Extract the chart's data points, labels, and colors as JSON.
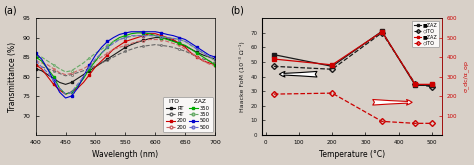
{
  "panel_a": {
    "title": "(a)",
    "xlabel": "Wavelength (nm)",
    "ylabel": "Transmittance (%)",
    "xlim": [
      400,
      700
    ],
    "ylim": [
      65,
      95
    ],
    "yticks": [
      70,
      75,
      80,
      85,
      90,
      95
    ],
    "xticks": [
      400,
      450,
      500,
      550,
      600,
      650,
      700
    ],
    "wavelengths": [
      400,
      410,
      420,
      430,
      440,
      450,
      460,
      470,
      480,
      490,
      500,
      510,
      520,
      530,
      540,
      550,
      560,
      570,
      580,
      590,
      600,
      610,
      620,
      630,
      640,
      650,
      660,
      670,
      680,
      690,
      700
    ],
    "ITO_RT": [
      82,
      81.5,
      80.5,
      79.5,
      78.5,
      78,
      78.5,
      79.5,
      80.5,
      81.5,
      82.5,
      83.5,
      84.5,
      85.5,
      86.5,
      87.5,
      88.2,
      88.8,
      89.3,
      89.7,
      90,
      90,
      89.7,
      89.2,
      88.5,
      87.8,
      87,
      86.2,
      85.5,
      85,
      84.5
    ],
    "ITO_200": [
      83,
      82,
      80,
      78,
      76.5,
      75.5,
      76,
      77,
      78.5,
      80.5,
      82.5,
      84,
      85.5,
      87,
      88,
      89,
      89.5,
      90,
      90.5,
      91,
      91,
      90.5,
      90,
      89.5,
      88.5,
      87.5,
      86,
      85,
      84,
      83.5,
      83
    ],
    "ITO_350": [
      85,
      84,
      82,
      80,
      77,
      75.5,
      76,
      77.5,
      79.5,
      82,
      84,
      86,
      87.5,
      89,
      90,
      90.5,
      91,
      91.2,
      91.2,
      91,
      90.5,
      90,
      89.5,
      89,
      88.5,
      88,
      87,
      86,
      85,
      84,
      83
    ],
    "ITO_500": [
      86,
      84.5,
      82,
      79,
      76,
      74.5,
      75,
      77,
      80,
      83,
      85.5,
      87.5,
      89,
      90,
      90.8,
      91.2,
      91.5,
      91.5,
      91.5,
      91.5,
      91.5,
      91.2,
      90.8,
      90.5,
      90,
      89.5,
      88.5,
      87.5,
      86.5,
      85.5,
      85
    ],
    "ZAZ_RT": [
      83,
      82.5,
      82,
      81.5,
      80.8,
      80.2,
      80.5,
      81,
      81.5,
      82,
      82.8,
      83.5,
      84.2,
      85,
      85.8,
      86.5,
      87,
      87.5,
      87.8,
      88,
      88.2,
      88,
      87.8,
      87.5,
      87,
      86.5,
      85.8,
      85,
      84.5,
      84,
      83.5
    ],
    "ZAZ_200": [
      84,
      83.5,
      83,
      82,
      81,
      80.5,
      80.8,
      81.5,
      82,
      83,
      84,
      85,
      86,
      87,
      87.5,
      88,
      88.5,
      89,
      89.2,
      89.5,
      89.5,
      89.5,
      89,
      88.5,
      88,
      87,
      86,
      85,
      84,
      83.2,
      82.8
    ],
    "ZAZ_350": [
      85.5,
      85,
      84,
      83,
      82,
      81.2,
      81.5,
      82.5,
      83.5,
      84.8,
      86,
      87,
      88,
      89,
      89.5,
      90,
      90.3,
      90.5,
      90.5,
      90.5,
      90.5,
      90.2,
      90,
      89.8,
      89.5,
      89,
      88,
      87,
      86,
      85,
      84
    ],
    "ZAZ_500": [
      84,
      82.5,
      81,
      79,
      77,
      75.5,
      76,
      78,
      80,
      82.5,
      84.5,
      86,
      87.5,
      88.5,
      89.5,
      90,
      90.5,
      90.5,
      90.5,
      90.5,
      90.5,
      90.2,
      90,
      89.8,
      89.5,
      89,
      88,
      87,
      86,
      85.2,
      84.5
    ],
    "ITO_colors": [
      "#1a1a1a",
      "#cc0000",
      "#00aa00",
      "#0000cc"
    ],
    "ZAZ_colors": [
      "#666666",
      "#cc6666",
      "#66aa66",
      "#6666cc"
    ],
    "labels_ITO": [
      "RT",
      "200",
      "350",
      "500"
    ],
    "labels_ZAZ": [
      "RT",
      "200",
      "350",
      "500"
    ]
  },
  "panel_b": {
    "title": "(b)",
    "xlabel": "Temperature (°C)",
    "ylabel_left": "Haacke FoM (10⁻³ Ω⁻¹)",
    "ylabel_right": "σ_dc/α_op",
    "temperatures": [
      25,
      200,
      350,
      450,
      500
    ],
    "ZAZ_FoM": [
      55,
      47,
      71,
      34,
      34
    ],
    "ITO_FoM": [
      47,
      45,
      70,
      35,
      33
    ],
    "ZAZ_sigma": [
      390,
      360,
      530,
      260,
      260
    ],
    "ITO_sigma": [
      210,
      215,
      70,
      60,
      60
    ],
    "left_color": "#1a1a1a",
    "right_color": "#cc0000",
    "left_ylim": [
      0,
      80
    ],
    "right_ylim": [
      0,
      600
    ],
    "left_yticks": [
      0,
      10,
      20,
      30,
      40,
      50,
      60,
      70
    ],
    "right_yticks": [
      100,
      200,
      300,
      400,
      500,
      600
    ],
    "xlim": [
      -10,
      530
    ],
    "xticks": [
      0,
      100,
      200,
      300,
      400,
      500
    ]
  }
}
